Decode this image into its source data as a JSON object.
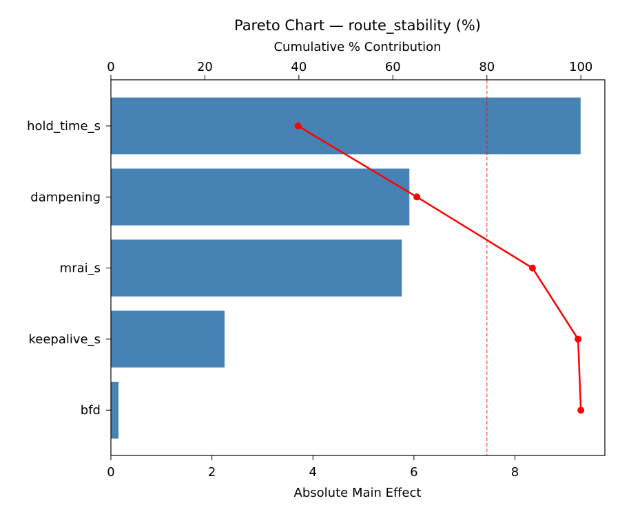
{
  "chart_data": {
    "type": "bar",
    "orientation": "horizontal",
    "title": "Pareto Chart — route_stability (%)",
    "xlabel": "Absolute Main Effect",
    "x2label": "Cumulative % Contribution",
    "categories": [
      "hold_time_s",
      "dampening",
      "mrai_s",
      "keepalive_s",
      "bfd"
    ],
    "values": [
      9.3,
      5.91,
      5.76,
      2.25,
      0.15
    ],
    "cumulative_percent": [
      39.8,
      65.1,
      89.7,
      99.4,
      100.0
    ],
    "threshold_percent": 80,
    "xlim": [
      0,
      9.78
    ],
    "x2lim": [
      0,
      105.1
    ],
    "xticks": [
      0,
      2,
      4,
      6,
      8
    ],
    "x2ticks": [
      0,
      20,
      40,
      60,
      80,
      100
    ],
    "grid": false,
    "colors": {
      "bar": "#4682b4",
      "cumulative": "#ff0000",
      "threshold": "#ff0000"
    }
  }
}
